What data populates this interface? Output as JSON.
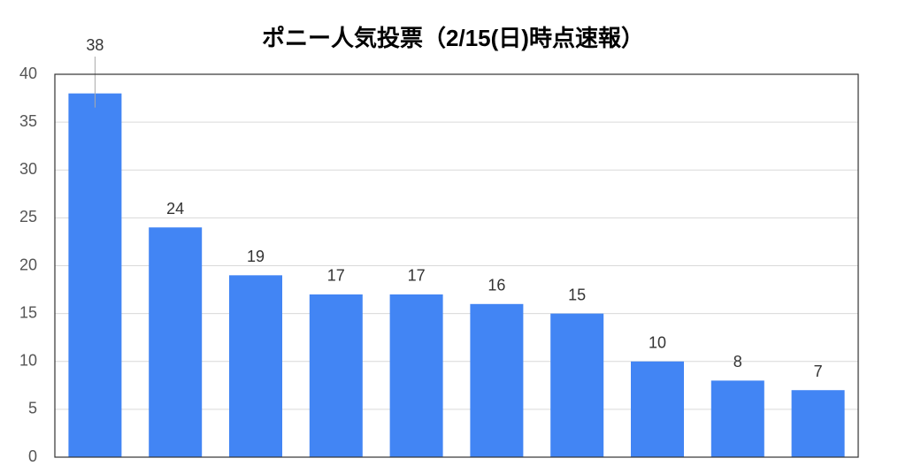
{
  "chart_data": {
    "type": "bar",
    "title": "ポニー人気投票（2/15(日)時点速報）",
    "values": [
      38,
      24,
      19,
      17,
      17,
      16,
      15,
      10,
      8,
      7
    ],
    "color": "#4285f4",
    "ylim": [
      0,
      40
    ],
    "yticks": [
      0,
      5,
      10,
      15,
      20,
      25,
      30,
      35,
      40
    ],
    "grid": true
  }
}
